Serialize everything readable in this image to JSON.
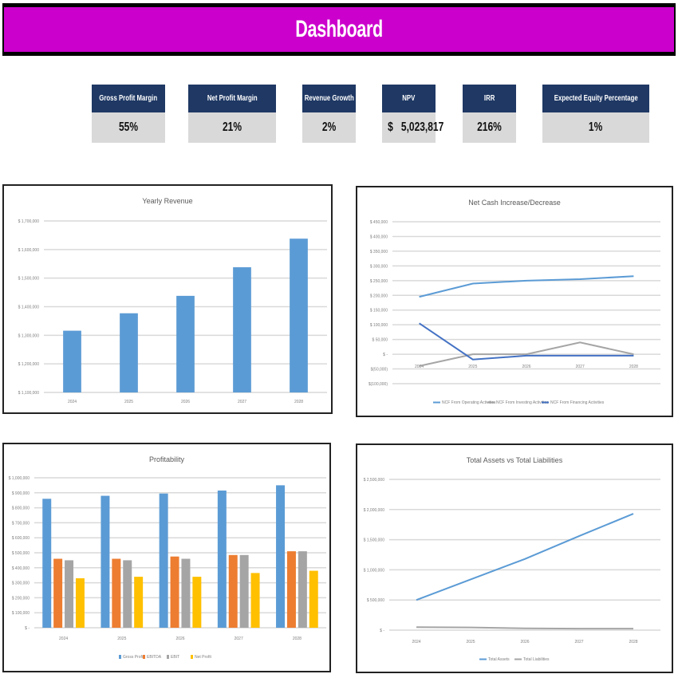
{
  "header": {
    "title": "Dashboard"
  },
  "colors": {
    "banner": "#cc00cc",
    "kpi_header": "#1f3864",
    "kpi_value_bg": "#d9d9d9",
    "blue": "#5b9bd5",
    "orange": "#ed7d31",
    "gray": "#a5a5a5",
    "yellow": "#ffc000",
    "dark_blue": "#4472c4"
  },
  "kpis": [
    {
      "label": "Gross Profit Margin",
      "value": "55%"
    },
    {
      "label": "Net Profit Margin",
      "value": "21%"
    },
    {
      "label": "Revenue Growth",
      "value": "2%"
    },
    {
      "label": "NPV",
      "currency": "$",
      "value": "5,023,817"
    },
    {
      "label": "IRR",
      "value": "216%"
    },
    {
      "label": "Expected Equity Percentage",
      "value": "1%"
    }
  ],
  "chart_data": [
    {
      "id": "yearly-revenue",
      "type": "bar",
      "title": "Yearly Revenue",
      "categories": [
        "2024",
        "2025",
        "2026",
        "2027",
        "2028"
      ],
      "series": [
        {
          "name": "Revenue",
          "color": "#5b9bd5",
          "values": [
            1316000,
            1377000,
            1438000,
            1538000,
            1638000
          ]
        }
      ],
      "yticks": [
        "$ 1,100,000",
        "$ 1,200,000",
        "$ 1,300,000",
        "$ 1,400,000",
        "$ 1,500,000",
        "$ 1,600,000",
        "$ 1,700,000"
      ],
      "ylim": [
        1100000,
        1700000
      ],
      "grid": true,
      "legend": "none"
    },
    {
      "id": "net-cash",
      "type": "line",
      "title": "Net Cash Increase/Decrease",
      "categories": [
        "2024",
        "2025",
        "2026",
        "2027",
        "2028"
      ],
      "series": [
        {
          "name": "NCF From Operating Activities",
          "color": "#5b9bd5",
          "values": [
            195000,
            240000,
            250000,
            255000,
            265000
          ]
        },
        {
          "name": "NCF From Investing Activities",
          "color": "#a5a5a5",
          "values": [
            -40000,
            0,
            0,
            40000,
            0
          ]
        },
        {
          "name": "NCF From Financing Activities",
          "color": "#4472c4",
          "values": [
            105000,
            -18000,
            -5000,
            -5000,
            -5000
          ]
        }
      ],
      "yticks": [
        "$(100,000)",
        "$(50,000)",
        "$ -",
        "$ 50,000",
        "$ 100,000",
        "$ 150,000",
        "$ 200,000",
        "$ 250,000",
        "$ 300,000",
        "$ 350,000",
        "$ 400,000",
        "$ 450,000"
      ],
      "ylim": [
        -100000,
        450000
      ],
      "grid": true,
      "legend": "bottom"
    },
    {
      "id": "profitability",
      "type": "bar",
      "title": "Profitability",
      "categories": [
        "2024",
        "2025",
        "2026",
        "2027",
        "2028"
      ],
      "series": [
        {
          "name": "Gross Profit",
          "color": "#5b9bd5",
          "values": [
            860000,
            880000,
            895000,
            915000,
            950000
          ]
        },
        {
          "name": "EBITDA",
          "color": "#ed7d31",
          "values": [
            460000,
            460000,
            475000,
            485000,
            510000
          ]
        },
        {
          "name": "EBIT",
          "color": "#a5a5a5",
          "values": [
            450000,
            450000,
            460000,
            485000,
            510000
          ]
        },
        {
          "name": "Net Profit",
          "color": "#ffc000",
          "values": [
            330000,
            340000,
            340000,
            365000,
            380000
          ]
        }
      ],
      "yticks": [
        "$ -",
        "$ 100,000",
        "$ 200,000",
        "$ 300,000",
        "$ 400,000",
        "$ 500,000",
        "$ 600,000",
        "$ 700,000",
        "$ 800,000",
        "$ 900,000",
        "$ 1,000,000"
      ],
      "ylim": [
        0,
        1000000
      ],
      "grid": true,
      "legend": "bottom"
    },
    {
      "id": "assets-liabilities",
      "type": "line",
      "title": "Total Assets vs Total Liabilities",
      "categories": [
        "2024",
        "2025",
        "2026",
        "2027",
        "2028"
      ],
      "series": [
        {
          "name": "Total Assets",
          "color": "#5b9bd5",
          "values": [
            500000,
            840000,
            1180000,
            1560000,
            1930000
          ]
        },
        {
          "name": "Total Liabilities",
          "color": "#a5a5a5",
          "values": [
            50000,
            45000,
            30000,
            25000,
            25000
          ]
        }
      ],
      "yticks": [
        "$ -",
        "$ 500,000",
        "$ 1,000,000",
        "$ 1,500,000",
        "$ 2,000,000",
        "$ 2,500,000"
      ],
      "ylim": [
        0,
        2500000
      ],
      "grid": true,
      "legend": "bottom"
    }
  ]
}
